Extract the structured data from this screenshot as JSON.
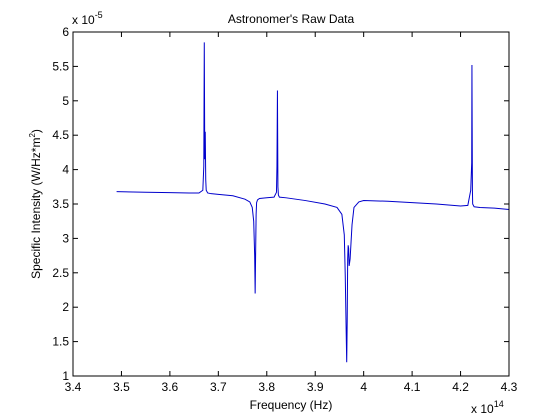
{
  "chart_data": {
    "type": "line",
    "title": "Astronomer's Raw Data",
    "xlabel": "Frequency (Hz)",
    "ylabel_parts": {
      "prefix": "Specific Intensity (W/Hz*m",
      "superscript": "2",
      "suffix": ")"
    },
    "x_multiplier": {
      "base": "x 10",
      "exponent": "14"
    },
    "y_multiplier": {
      "base": "x 10",
      "exponent": "-5"
    },
    "xlim": [
      3.4,
      4.3
    ],
    "ylim": [
      1,
      6
    ],
    "x_ticks": [
      3.4,
      3.5,
      3.6,
      3.7,
      3.8,
      3.9,
      4.0,
      4.1,
      4.2,
      4.3
    ],
    "x_tick_labels": [
      "3.4",
      "3.5",
      "3.6",
      "3.7",
      "3.8",
      "3.9",
      "4",
      "4.1",
      "4.2",
      "4.3"
    ],
    "y_ticks": [
      1,
      1.5,
      2,
      2.5,
      3,
      3.5,
      4,
      4.5,
      5,
      5.5,
      6
    ],
    "y_tick_labels": [
      "1",
      "1.5",
      "2",
      "2.5",
      "3",
      "3.5",
      "4",
      "4.5",
      "5",
      "5.5",
      "6"
    ],
    "grid": false,
    "series": [
      {
        "color": "#0000cc",
        "x": [
          3.49,
          3.55,
          3.6,
          3.64,
          3.66,
          3.668,
          3.67,
          3.671,
          3.672,
          3.673,
          3.674,
          3.675,
          3.678,
          3.685,
          3.7,
          3.73,
          3.755,
          3.765,
          3.77,
          3.773,
          3.775,
          3.776,
          3.777,
          3.778,
          3.779,
          3.781,
          3.785,
          3.8,
          3.815,
          3.82,
          3.821,
          3.822,
          3.823,
          3.824,
          3.826,
          3.84,
          3.88,
          3.92,
          3.945,
          3.955,
          3.96,
          3.962,
          3.964,
          3.965,
          3.966,
          3.967,
          3.968,
          3.969,
          3.97,
          3.972,
          3.974,
          3.976,
          3.98,
          3.99,
          4.0,
          4.05,
          4.1,
          4.15,
          4.2,
          4.215,
          4.221,
          4.223,
          4.2235,
          4.2245,
          4.225,
          4.228,
          4.24,
          4.27,
          4.3
        ],
        "y": [
          3.68,
          3.67,
          3.665,
          3.66,
          3.66,
          3.7,
          4.05,
          5.85,
          4.15,
          4.55,
          3.85,
          3.7,
          3.66,
          3.65,
          3.64,
          3.62,
          3.57,
          3.53,
          3.45,
          3.25,
          2.75,
          2.2,
          2.8,
          3.35,
          3.52,
          3.56,
          3.58,
          3.59,
          3.6,
          3.67,
          4.05,
          5.15,
          3.75,
          3.63,
          3.6,
          3.59,
          3.55,
          3.5,
          3.45,
          3.35,
          3.05,
          2.45,
          1.6,
          1.2,
          1.8,
          2.7,
          2.9,
          2.85,
          2.6,
          2.7,
          2.95,
          3.2,
          3.45,
          3.53,
          3.55,
          3.54,
          3.52,
          3.5,
          3.47,
          3.48,
          3.7,
          4.1,
          5.52,
          3.7,
          3.5,
          3.46,
          3.45,
          3.44,
          3.42
        ]
      }
    ]
  }
}
